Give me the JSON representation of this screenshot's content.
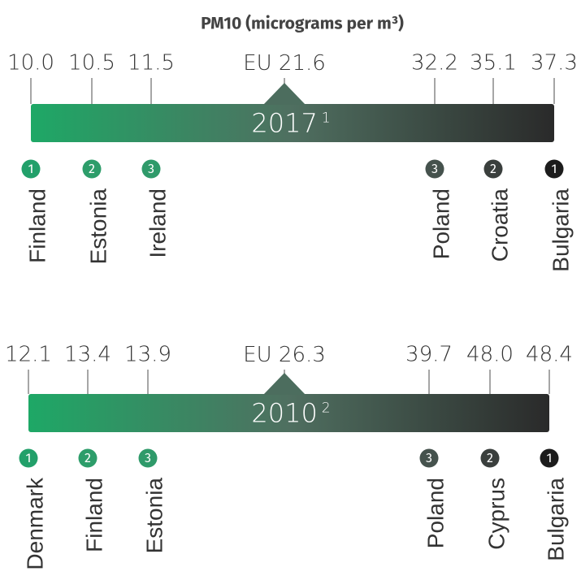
{
  "title": "PM10 (micrograms per m³)",
  "panels": [
    {
      "year": "2017",
      "note": "1",
      "eu_label": "EU",
      "eu_value": "21.6",
      "items": [
        {
          "value": "10.0",
          "rank": "1",
          "country": "Finland"
        },
        {
          "value": "10.5",
          "rank": "2",
          "country": "Estonia"
        },
        {
          "value": "11.5",
          "rank": "3",
          "country": "Ireland"
        },
        {
          "value": "32.2",
          "rank": "3",
          "country": "Poland"
        },
        {
          "value": "35.1",
          "rank": "2",
          "country": "Croatia"
        },
        {
          "value": "37.3",
          "rank": "1",
          "country": "Bulgaria"
        }
      ]
    },
    {
      "year": "2010",
      "note": "2",
      "eu_label": "EU",
      "eu_value": "26.3",
      "items": [
        {
          "value": "12.1",
          "rank": "1",
          "country": "Denmark"
        },
        {
          "value": "13.4",
          "rank": "2",
          "country": "Finland"
        },
        {
          "value": "13.9",
          "rank": "3",
          "country": "Estonia"
        },
        {
          "value": "39.7",
          "rank": "3",
          "country": "Poland"
        },
        {
          "value": "48.0",
          "rank": "2",
          "country": "Cyprus"
        },
        {
          "value": "48.4",
          "rank": "1",
          "country": "Bulgaria"
        }
      ]
    }
  ]
}
